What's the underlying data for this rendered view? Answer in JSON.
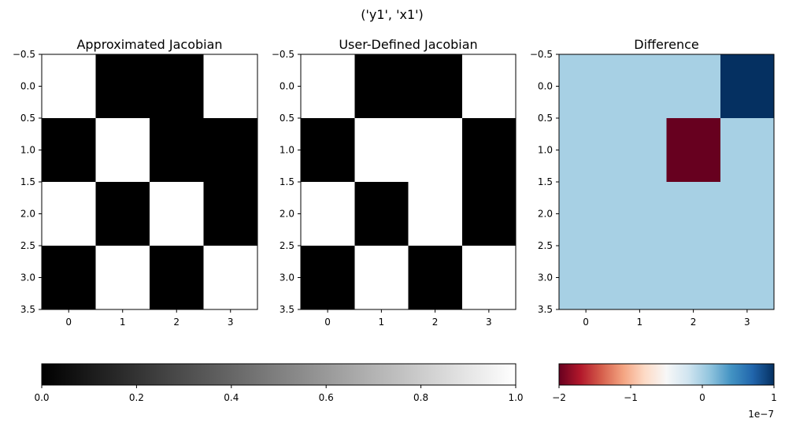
{
  "figure": {
    "suptitle": "('y1', 'x1')"
  },
  "chart_data": [
    {
      "type": "heatmap",
      "title": "Approximated Jacobian",
      "colormap": "gray",
      "vmin": 0,
      "vmax": 1,
      "x_ticks": [
        "0",
        "1",
        "2",
        "3"
      ],
      "y_ticks": [
        "−0.5",
        "0.0",
        "0.5",
        "1.0",
        "1.5",
        "2.0",
        "2.5",
        "3.0",
        "3.5"
      ],
      "values": [
        [
          1,
          0,
          0,
          1
        ],
        [
          0,
          1,
          0,
          0
        ],
        [
          1,
          0,
          1,
          0
        ],
        [
          0,
          1,
          0,
          1
        ]
      ]
    },
    {
      "type": "heatmap",
      "title": "User-Defined Jacobian",
      "colormap": "gray",
      "vmin": 0,
      "vmax": 1,
      "x_ticks": [
        "0",
        "1",
        "2",
        "3"
      ],
      "y_ticks": [
        "−0.5",
        "0.0",
        "0.5",
        "1.0",
        "1.5",
        "2.0",
        "2.5",
        "3.0",
        "3.5"
      ],
      "values": [
        [
          1,
          0,
          0,
          1
        ],
        [
          0,
          1,
          1,
          0
        ],
        [
          1,
          0,
          1,
          0
        ],
        [
          0,
          1,
          0,
          1
        ]
      ]
    },
    {
      "type": "heatmap",
      "title": "Difference",
      "colormap": "RdBu",
      "vmin": -2e-07,
      "vmax": 1e-07,
      "x_ticks": [
        "0",
        "1",
        "2",
        "3"
      ],
      "y_ticks": [
        "−0.5",
        "0.0",
        "0.5",
        "1.0",
        "1.5",
        "2.0",
        "2.5",
        "3.0",
        "3.5"
      ],
      "values": [
        [
          0,
          0,
          0,
          1e-07
        ],
        [
          0,
          0,
          -2e-07,
          0
        ],
        [
          0,
          0,
          0,
          0
        ],
        [
          0,
          0,
          0,
          0
        ]
      ]
    }
  ],
  "colorbars": [
    {
      "colormap": "gray",
      "ticks": [
        "0.0",
        "0.2",
        "0.4",
        "0.6",
        "0.8",
        "1.0"
      ]
    },
    {
      "colormap": "RdBu",
      "ticks": [
        "−2",
        "−1",
        "0",
        "1"
      ],
      "offset_label": "1e−7"
    }
  ],
  "colors": {
    "black": "#000000",
    "white": "#ffffff",
    "diff_zero": "#a7cfe4",
    "diff_max": "#053061",
    "diff_min": "#67001f"
  }
}
